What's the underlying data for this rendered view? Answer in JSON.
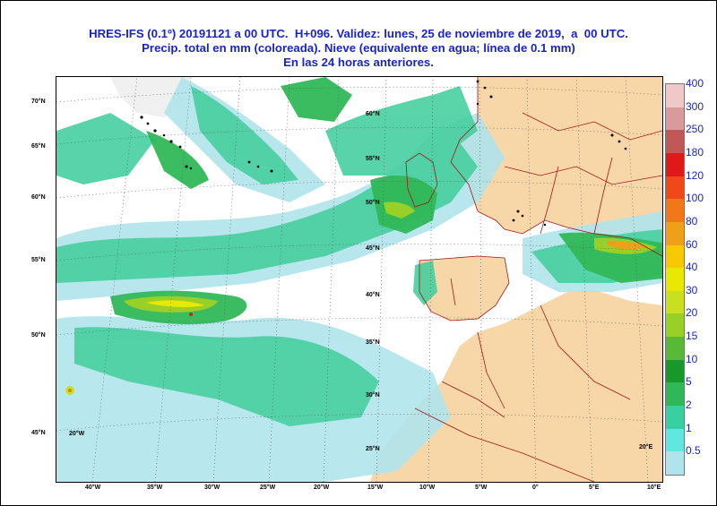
{
  "title": {
    "line1": "HRES-IFS (0.1º) 20191121 a 00 UTC.  H+096. Validez: lunes, 25 de noviembre de 2019,  a  00 UTC.",
    "line2": "Precip. total en mm (coloreada). Nieve (equivalente en agua; línea de 0.1 mm)",
    "line3": "En las 24 horas anteriores."
  },
  "axes": {
    "bottom": [
      "40°W",
      "35°W",
      "30°W",
      "25°W",
      "20°W",
      "15°W",
      "10°W",
      "5°W",
      "0°",
      "5°E",
      "10°E"
    ],
    "left": [
      "70°N",
      "65°N",
      "60°N",
      "55°N",
      "50°N",
      "45°N"
    ],
    "inner_lat": [
      "60°N",
      "55°N",
      "50°N",
      "45°N",
      "40°N",
      "35°N",
      "30°N",
      "25°N"
    ],
    "corner": [
      "20°W",
      "20°E"
    ]
  },
  "legend": {
    "levels": [
      "400",
      "300",
      "250",
      "180",
      "120",
      "100",
      "80",
      "60",
      "40",
      "30",
      "20",
      "15",
      "10",
      "5",
      "2",
      "1",
      "0.5"
    ],
    "colors": [
      "#f0c8c8",
      "#d89a9a",
      "#c05858",
      "#e01818",
      "#f04818",
      "#f07818",
      "#f0a018",
      "#f8c800",
      "#e8e800",
      "#c8e020",
      "#98d028",
      "#58b838",
      "#189828",
      "#30b858",
      "#38d0a0",
      "#60e8e0",
      "#b0e4ec"
    ]
  },
  "colors": {
    "title": "#1a24c4",
    "land": "#f7d7a8",
    "border": "#a01818",
    "grid": "#555555"
  }
}
